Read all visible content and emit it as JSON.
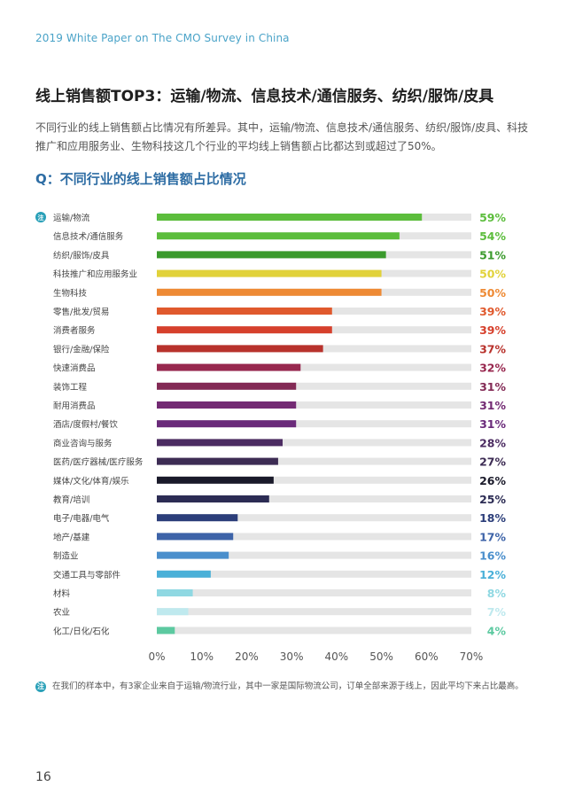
{
  "header": {
    "text": "2019 White Paper on The CMO Survey in China"
  },
  "title": "线上销售额TOP3：运输/物流、信息技术/通信服务、纺织/服饰/皮具",
  "description": "不同行业的线上销售额占比情况有所差异。其中，运输/物流、信息技术/通信服务、纺织/服饰/皮具、科技推广和应用服务业、生物科技这几个行业的平均线上销售额占比都达到或超过了50%。",
  "question": "Q：不同行业的线上销售额占比情况",
  "note_badge": "注",
  "footnote": "在我们的样本中，有3家企业来自于运输/物流行业，其中一家是国际物流公司，订单全部来源于线上，因此平均下来占比最高。",
  "page_number": "16",
  "chart_data": {
    "type": "bar",
    "orientation": "horizontal",
    "categories": [
      "运输/物流",
      "信息技术/通信服务",
      "纺织/服饰/皮具",
      "科技推广和应用服务业",
      "生物科技",
      "零售/批发/贸易",
      "消费者服务",
      "银行/金融/保险",
      "快速消费品",
      "装饰工程",
      "耐用消费品",
      "酒店/度假村/餐饮",
      "商业咨询与服务",
      "医药/医疗器械/医疗服务",
      "媒体/文化/体育/娱乐",
      "教育/培训",
      "电子/电器/电气",
      "地产/基建",
      "制造业",
      "交通工具与零部件",
      "材料",
      "农业",
      "化工/日化/石化"
    ],
    "values": [
      59,
      54,
      51,
      50,
      50,
      39,
      39,
      37,
      32,
      31,
      31,
      31,
      28,
      27,
      26,
      25,
      18,
      17,
      16,
      12,
      8,
      7,
      4
    ],
    "labels": [
      "59%",
      "54%",
      "51%",
      "50%",
      "50%",
      "39%",
      "39%",
      "37%",
      "32%",
      "31%",
      "31%",
      "31%",
      "28%",
      "27%",
      "26%",
      "25%",
      "18%",
      "17%",
      "16%",
      "12%",
      "8%",
      "7%",
      "4%"
    ],
    "colors": [
      "#5cbd3c",
      "#5cbd3c",
      "#3a9a2c",
      "#e1d23a",
      "#ee8a34",
      "#e0592d",
      "#d6402c",
      "#b8322c",
      "#98284f",
      "#832a55",
      "#732a73",
      "#6a2a7a",
      "#4c2c62",
      "#3d2c54",
      "#1a1a2a",
      "#2c2c54",
      "#2c3e7a",
      "#3d63a8",
      "#4a8fcc",
      "#4ab0d8",
      "#8fd8e2",
      "#bfe9ee",
      "#5cc9a0"
    ],
    "xlim": [
      0,
      70
    ],
    "xticks": [
      "0%",
      "10%",
      "20%",
      "30%",
      "40%",
      "50%",
      "60%",
      "70%"
    ],
    "grid": true,
    "first_row_badge": "注"
  }
}
